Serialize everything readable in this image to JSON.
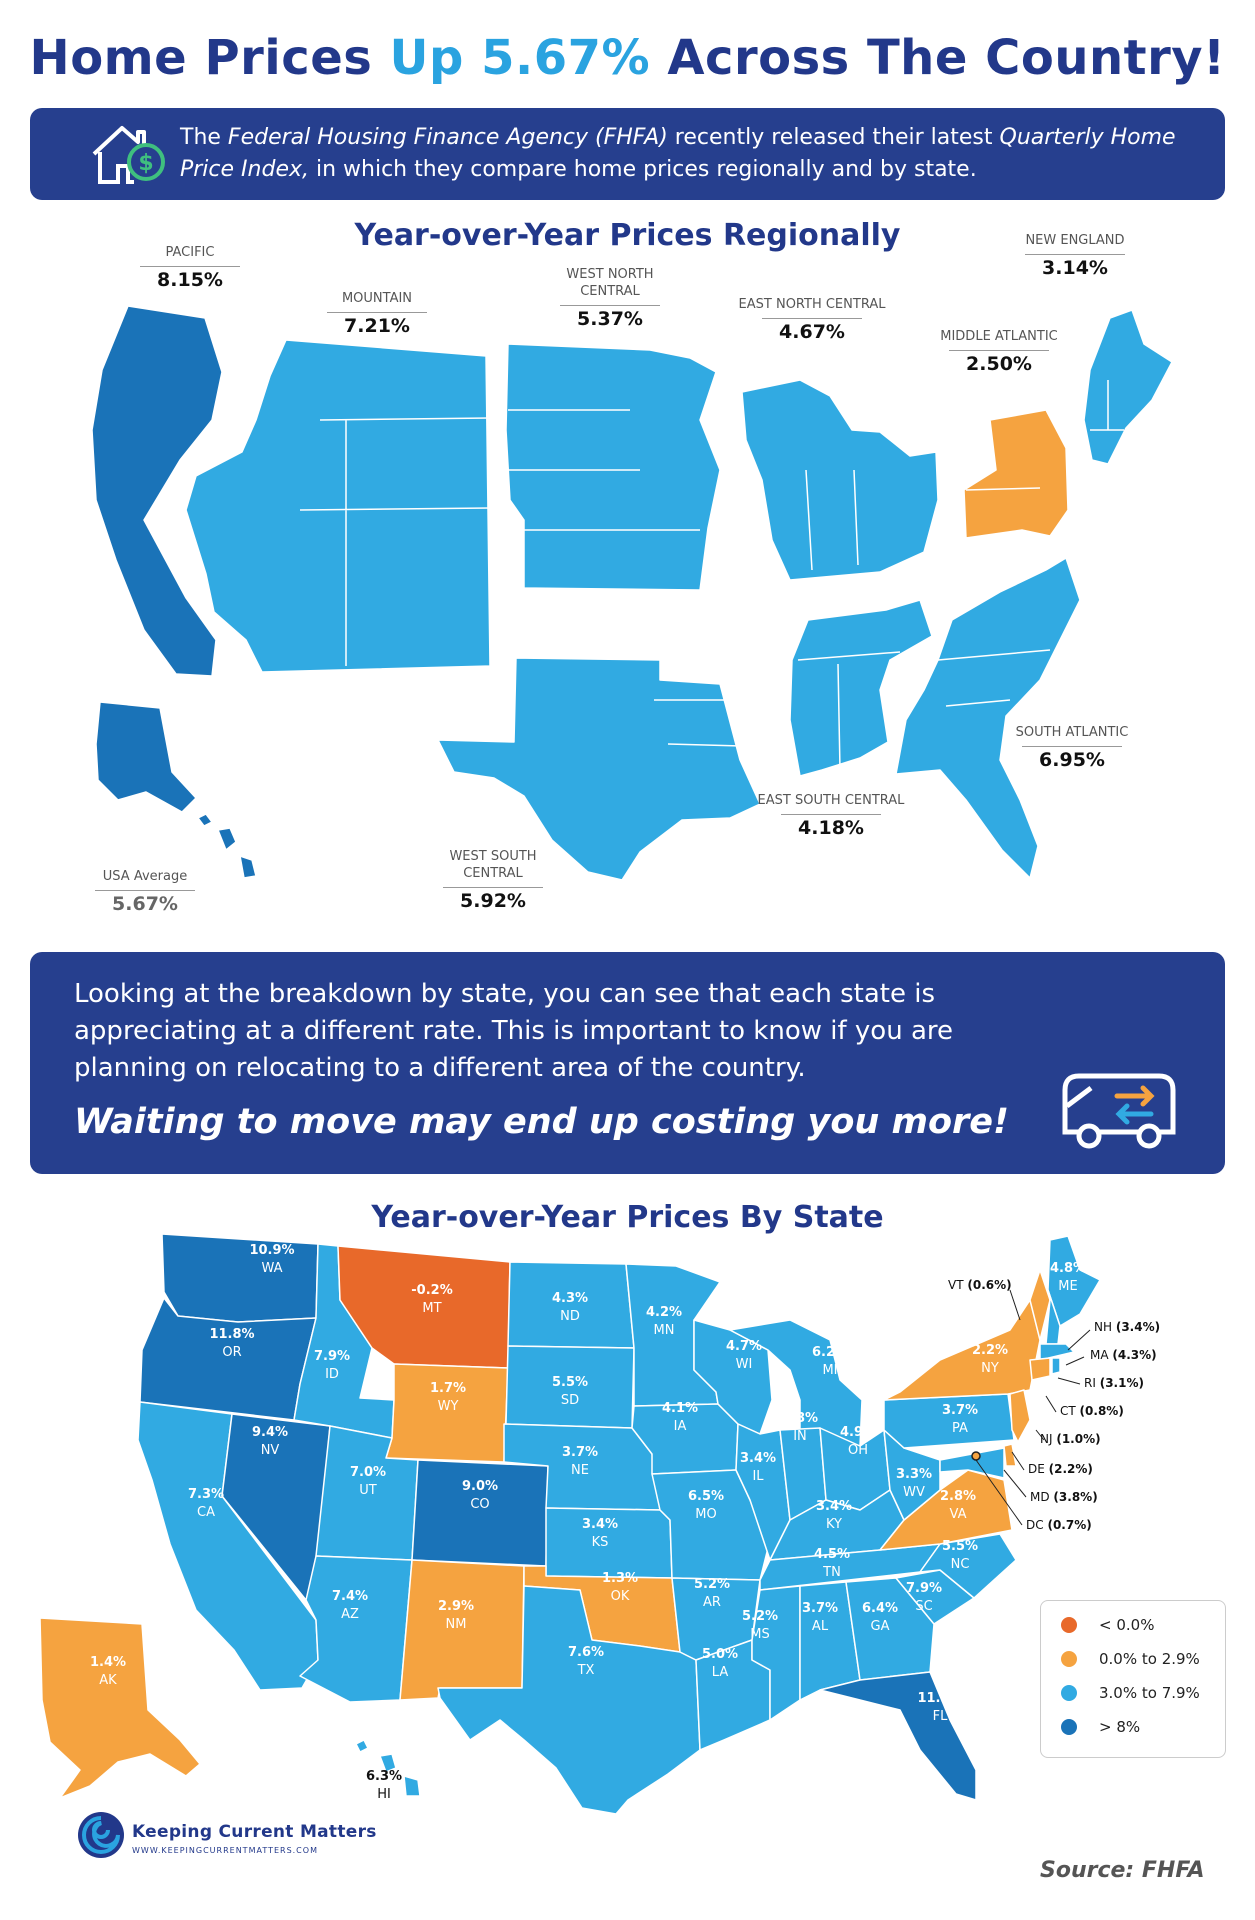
{
  "header": {
    "title_a": "Home Prices ",
    "title_b": "Up 5.67%",
    "title_c": " Across The Country!"
  },
  "intro": {
    "t1": "The ",
    "t2": "Federal Housing Finance Agency (FHFA)",
    "t3": " recently released their latest ",
    "t4": "Quarterly Home Price Index,",
    "t5": " in which they compare home prices regionally and by state."
  },
  "regional": {
    "title": "Year-over-Year Prices Regionally",
    "regions": [
      {
        "name": "PACIFIC",
        "value": "8.15%"
      },
      {
        "name": "MOUNTAIN",
        "value": "7.21%"
      },
      {
        "name": "WEST NORTH CENTRAL",
        "value": "5.37%"
      },
      {
        "name": "EAST NORTH CENTRAL",
        "value": "4.67%"
      },
      {
        "name": "MIDDLE ATLANTIC",
        "value": "2.50%"
      },
      {
        "name": "NEW ENGLAND",
        "value": "3.14%"
      },
      {
        "name": "SOUTH ATLANTIC",
        "value": "6.95%"
      },
      {
        "name": "EAST SOUTH CENTRAL",
        "value": "4.18%"
      },
      {
        "name": "WEST SOUTH CENTRAL",
        "value": "5.92%"
      }
    ],
    "usa_label": "USA Average",
    "usa_value": "5.67%"
  },
  "message": {
    "paragraph": "Looking at the breakdown by state, you can see that each state is appreciating at a different rate. This is important to know if you are planning on relocating to a different area of the country.",
    "cta": "Waiting to move may end up costing you more!"
  },
  "states_section": {
    "title": "Year-over-Year Prices By State",
    "states": {
      "WA": "10.9%",
      "OR": "11.8%",
      "CA": "7.3%",
      "NV": "9.4%",
      "ID": "7.9%",
      "MT": "-0.2%",
      "WY": "1.7%",
      "UT": "7.0%",
      "CO": "9.0%",
      "AZ": "7.4%",
      "NM": "2.9%",
      "ND": "4.3%",
      "SD": "5.5%",
      "NE": "3.7%",
      "KS": "3.4%",
      "OK": "1.3%",
      "TX": "7.6%",
      "MN": "4.2%",
      "IA": "4.1%",
      "MO": "6.5%",
      "AR": "5.2%",
      "LA": "5.0%",
      "WI": "4.7%",
      "IL": "3.4%",
      "MI": "6.2%",
      "IN": "3.8%",
      "OH": "4.9%",
      "KY": "3.4%",
      "TN": "4.5%",
      "MS": "5.2%",
      "AL": "3.7%",
      "GA": "6.4%",
      "FL": "11.2%",
      "SC": "7.9%",
      "NC": "5.5%",
      "VA": "2.8%",
      "WV": "3.3%",
      "PA": "3.7%",
      "NY": "2.2%",
      "ME": "4.8%",
      "AK": "1.4%",
      "HI": "6.3%"
    },
    "small_states": [
      {
        "abbr": "VT",
        "value": "(0.6%)"
      },
      {
        "abbr": "NH",
        "value": "(3.4%)"
      },
      {
        "abbr": "MA",
        "value": "(4.3%)"
      },
      {
        "abbr": "RI",
        "value": "(3.1%)"
      },
      {
        "abbr": "CT",
        "value": "(0.8%)"
      },
      {
        "abbr": "NJ",
        "value": "(1.0%)"
      },
      {
        "abbr": "DE",
        "value": "(2.2%)"
      },
      {
        "abbr": "MD",
        "value": "(3.8%)"
      },
      {
        "abbr": "DC",
        "value": "(0.7%)"
      }
    ],
    "legend": [
      {
        "label": "< 0.0%",
        "color": "#e8692a"
      },
      {
        "label": "0.0% to 2.9%",
        "color": "#f5a340"
      },
      {
        "label": "3.0% to 7.9%",
        "color": "#31aae2"
      },
      {
        "label": "> 8%",
        "color": "#1a73b8"
      }
    ]
  },
  "colors": {
    "navy": "#263f8e",
    "blue_light": "#31aae2",
    "blue_dark": "#1a73b8",
    "orange": "#f5a340",
    "orange_dark": "#e8692a"
  },
  "footer": {
    "brand": "Keeping Current Matters",
    "url": "WWW.KEEPINGCURRENTMATTERS.COM",
    "source": "Source: FHFA"
  }
}
